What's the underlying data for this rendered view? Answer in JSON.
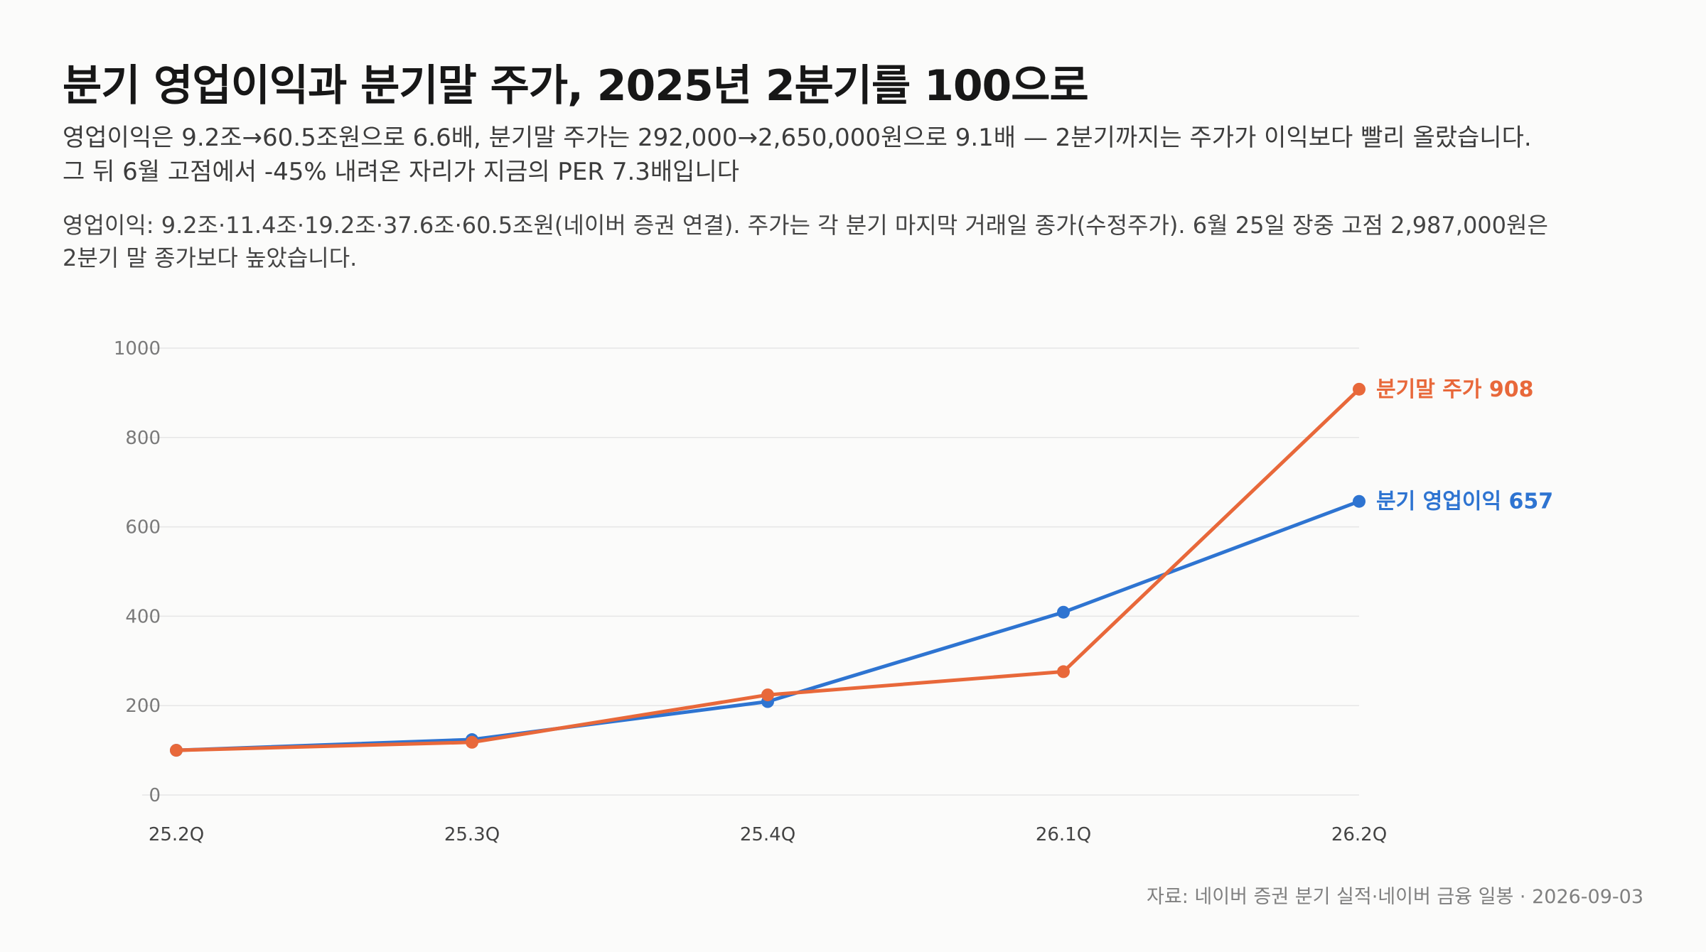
{
  "header": {
    "title": "분기 영업이익과 분기말 주가, 2025년 2분기를 100으로",
    "subtitle_lines": [
      "영업이익은 9.2조→60.5조원으로 6.6배, 분기말 주가는 292,000→2,650,000원으로 9.1배 — 2분기까지는 주가가 이익보다 빨리 올랐습니다.",
      "그 뒤 6월 고점에서 -45% 내려온 자리가 지금의 PER 7.3배입니다"
    ],
    "note_lines": [
      "영업이익: 9.2조·11.4조·19.2조·37.6조·60.5조원(네이버 증권 연결). 주가는 각 분기 마지막 거래일 종가(수정주가). 6월 25일 장중 고점 2,987,000원은",
      "2분기 말 종가보다 높았습니다."
    ]
  },
  "footer": {
    "source": "자료: 네이버 증권 분기 실적·네이버 금융 일봉 · 2026-09-03"
  },
  "colors": {
    "operating_profit": "#2e74d1",
    "stock_price": "#e8683a",
    "grid": "#e6e6e6"
  },
  "chart_data": {
    "type": "line",
    "categories": [
      "25.2Q",
      "25.3Q",
      "25.4Q",
      "26.1Q",
      "26.2Q"
    ],
    "ylim": [
      0,
      1000
    ],
    "yticks": [
      0,
      200,
      400,
      600,
      800,
      1000
    ],
    "grid": true,
    "legend": "end-of-line labels",
    "series": [
      {
        "key": "operating_profit",
        "name": "분기 영업이익",
        "end_label": "분기 영업이익 657",
        "values": [
          100,
          124,
          209,
          409,
          657
        ]
      },
      {
        "key": "stock_price",
        "name": "분기말 주가",
        "end_label": "분기말 주가 908",
        "values": [
          100,
          118,
          224,
          276,
          908
        ]
      }
    ]
  }
}
